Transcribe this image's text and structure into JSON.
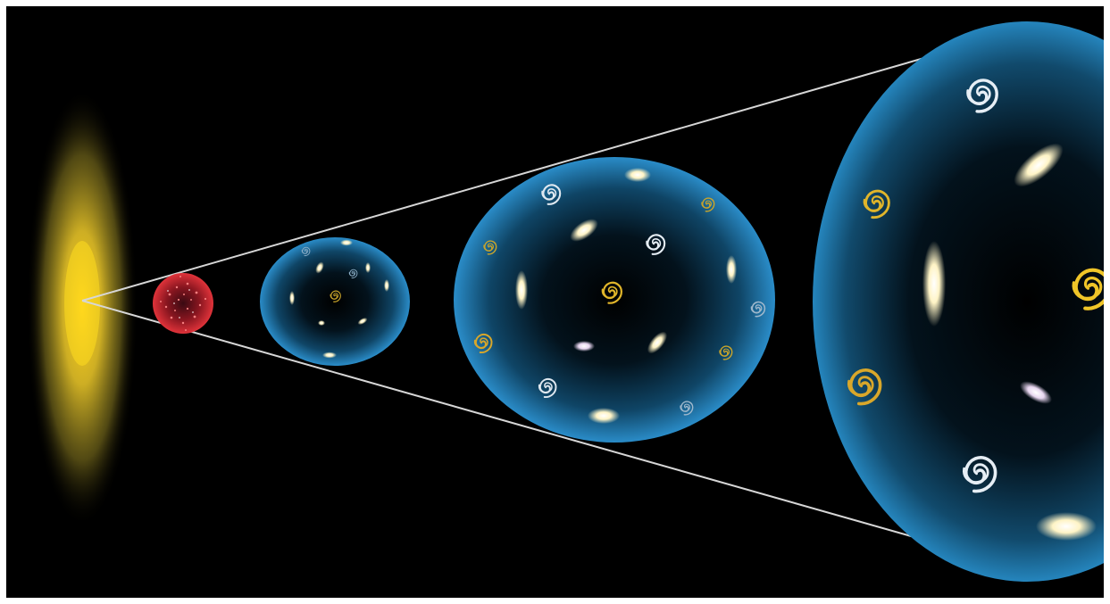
{
  "diagram": {
    "description_free": true,
    "colors": {
      "background": "#000000",
      "frame": "#ffffff",
      "cone_lines": "#d8d8d8",
      "big_bang_glow": "#f5d21a",
      "hot_early_universe": "#d8262e",
      "universe_bubble": "#1f7fb8",
      "elliptical_galaxy": "#fff3c8",
      "spiral_galaxy_white": "#e6eef5",
      "spiral_galaxy_gold": "#e0b52a",
      "spiral_galaxy_violet": "#e9d8f0"
    },
    "stages": [
      {
        "name": "big-bang-glow",
        "icon": "glow-ellipse-icon"
      },
      {
        "name": "early-hot-universe",
        "icon": "red-dotted-sphere-icon"
      },
      {
        "name": "young-universe",
        "icon": "blue-sphere-icon"
      },
      {
        "name": "expanding-universe",
        "icon": "blue-sphere-icon"
      },
      {
        "name": "present-universe",
        "icon": "blue-sphere-icon"
      }
    ]
  }
}
